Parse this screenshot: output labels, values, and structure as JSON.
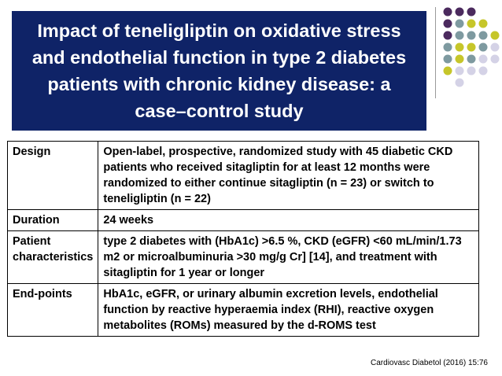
{
  "slide": {
    "title": "Impact of teneligliptin on oxidative stress and endothelial function in type 2 diabetes patients with chronic kidney disease: a case–control study",
    "rows": [
      {
        "label": "Design",
        "value": "Open-label, prospective, randomized study with 45 diabetic CKD patients who received sitagliptin for at least 12 months were randomized to either continue sitagliptin (n = 23) or switch to teneligliptin (n = 22)"
      },
      {
        "label": "Duration",
        "value": "24 weeks"
      },
      {
        "label": "Patient characteristics",
        "value": "type 2 diabetes with (HbA1c) >6.5 %,  CKD (eGFR) <60 mL/min/1.73 m2 or microalbuminuria >30 mg/g Cr] [14], and treatment with sitagliptin for 1 year or longer"
      },
      {
        "label": "End-points",
        "value": "HbA1c, eGFR, or urinary albumin excretion levels, endothelial function by reactive hyperaemia index (RHI), reactive oxygen metabolites (ROMs) measured by the d-ROMS test"
      }
    ],
    "source": "Cardiovasc Diabetol (2016) 15:76"
  },
  "colors": {
    "title_bg": "#0f2367",
    "dot_purple": "#4b2a5e",
    "dot_teal": "#7e9aa0",
    "dot_yellow": "#c6c62a",
    "dot_lavender": "#d4d2e6"
  }
}
